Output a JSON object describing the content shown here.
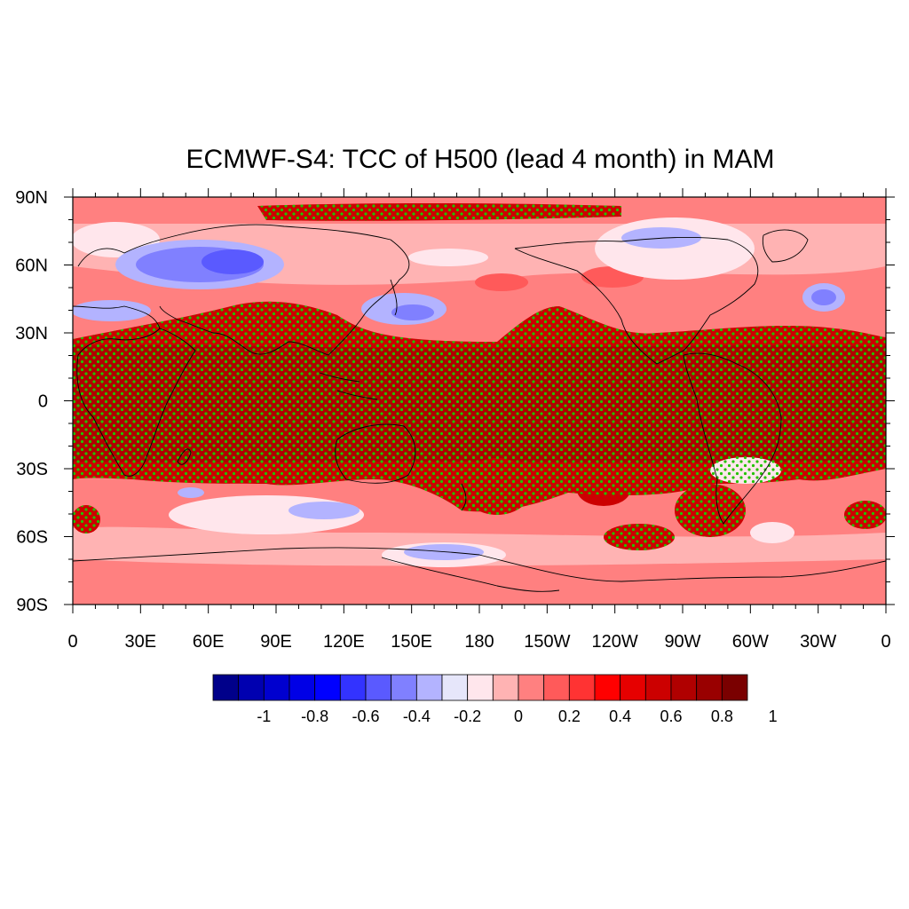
{
  "title": "ECMWF-S4: TCC of H500 (lead 4 month) in MAM",
  "axes": {
    "lat_labels": [
      "90N",
      "60N",
      "30N",
      "0",
      "30S",
      "60S",
      "90S"
    ],
    "lat_values": [
      90,
      60,
      30,
      0,
      -30,
      -60,
      -90
    ],
    "lon_labels": [
      "0",
      "30E",
      "60E",
      "90E",
      "120E",
      "150E",
      "180",
      "150W",
      "120W",
      "90W",
      "60W",
      "30W",
      "0"
    ],
    "lon_values": [
      0,
      30,
      60,
      90,
      120,
      150,
      180,
      210,
      240,
      270,
      300,
      330,
      360
    ]
  },
  "colorbar": {
    "colors": [
      "#00008a",
      "#0000b0",
      "#0000cf",
      "#0000e6",
      "#0000ff",
      "#3333ff",
      "#5a5aff",
      "#8080ff",
      "#b3b3ff",
      "#e6e6fa",
      "#ffe6ec",
      "#ffb3b3",
      "#ff8080",
      "#ff5a5a",
      "#ff3333",
      "#ff0000",
      "#e60000",
      "#cc0000",
      "#b00000",
      "#990000",
      "#7a0000"
    ],
    "labels": [
      "-1",
      "-0.8",
      "-0.6",
      "-0.4",
      "-0.2",
      "0",
      "0.2",
      "0.4",
      "0.6",
      "0.8",
      "1"
    ]
  },
  "significance_color": "#22c400"
}
